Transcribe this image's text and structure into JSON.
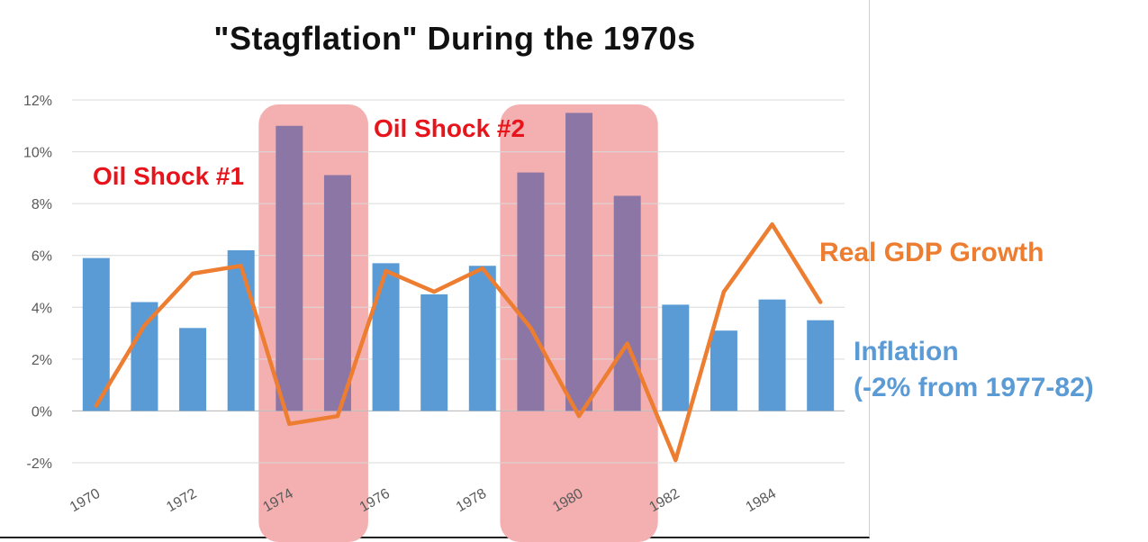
{
  "chart_data": {
    "type": "bar",
    "title": "\"Stagflation\" During the 1970s",
    "x": [
      1970,
      1971,
      1972,
      1973,
      1974,
      1975,
      1976,
      1977,
      1978,
      1979,
      1980,
      1981,
      1982,
      1983,
      1984,
      1985
    ],
    "x_tick_labels": [
      "1970",
      "1972",
      "1974",
      "1976",
      "1978",
      "1980",
      "1982",
      "1984"
    ],
    "ylim": [
      -0.02,
      0.12
    ],
    "y_tick_labels": [
      "-2%",
      "0%",
      "2%",
      "4%",
      "6%",
      "8%",
      "10%",
      "12%"
    ],
    "grid": true,
    "series": [
      {
        "kind": "bar",
        "values": [
          0.059,
          0.042,
          0.032,
          0.062,
          0.11,
          0.091,
          0.057,
          0.045,
          0.056,
          0.092,
          0.115,
          0.083,
          0.041,
          0.031,
          0.043,
          0.035
        ],
        "color": "#5b9bd5",
        "highlight_color": "#8b76a6"
      },
      {
        "kind": "line",
        "values": [
          0.002,
          0.033,
          0.053,
          0.056,
          -0.005,
          -0.002,
          0.054,
          0.046,
          0.055,
          0.032,
          -0.002,
          0.026,
          -0.019,
          0.046,
          0.072,
          0.042
        ],
        "color": "#ed7d31"
      }
    ],
    "highlight_bands": [
      {
        "start": 1974,
        "end": 1975,
        "color": "#f4b0b0"
      },
      {
        "start": 1979,
        "end": 1981,
        "color": "#f4b0b0"
      }
    ],
    "annotations": {
      "shock1": "Oil Shock #1",
      "shock2": "Oil Shock #2",
      "gdp": "Real GDP Growth",
      "inflation_line1": "Inflation",
      "inflation_line2": "(-2% from 1977-82)"
    }
  }
}
